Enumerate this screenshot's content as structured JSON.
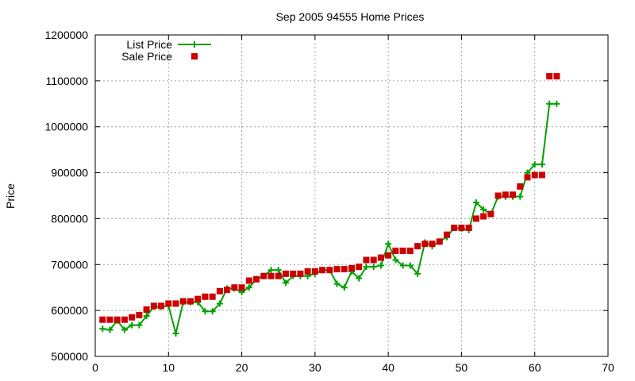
{
  "chart_data": {
    "type": "line",
    "title": "Sep 2005 94555 Home Prices",
    "xlabel": "",
    "ylabel": "Price",
    "xlim": [
      0,
      70
    ],
    "ylim": [
      500000,
      1200000
    ],
    "xticks": [
      0,
      10,
      20,
      30,
      40,
      50,
      60,
      70
    ],
    "yticks": [
      500000,
      600000,
      700000,
      800000,
      900000,
      1000000,
      1100000,
      1200000
    ],
    "grid": true,
    "legend_position": "top-left",
    "series": [
      {
        "name": "List Price",
        "style": "line-plus",
        "color": "#00a000",
        "x": [
          1,
          2,
          3,
          4,
          5,
          6,
          7,
          8,
          9,
          10,
          11,
          12,
          13,
          14,
          15,
          16,
          17,
          18,
          19,
          20,
          21,
          22,
          23,
          24,
          25,
          26,
          27,
          28,
          29,
          30,
          31,
          32,
          33,
          34,
          35,
          36,
          37,
          38,
          39,
          40,
          41,
          42,
          43,
          44,
          45,
          46,
          47,
          48,
          49,
          50,
          51,
          52,
          53,
          54,
          55,
          56,
          57,
          58,
          59,
          60,
          61,
          62,
          63
        ],
        "y": [
          560000,
          558000,
          578000,
          558000,
          568000,
          568000,
          588000,
          608000,
          608000,
          610000,
          550000,
          618000,
          618000,
          618000,
          598000,
          598000,
          615000,
          648000,
          648000,
          640000,
          650000,
          668000,
          675000,
          688000,
          688000,
          660000,
          675000,
          675000,
          675000,
          680000,
          688000,
          688000,
          658000,
          650000,
          685000,
          670000,
          695000,
          695000,
          698000,
          745000,
          710000,
          698000,
          698000,
          680000,
          748000,
          740000,
          750000,
          760000,
          780000,
          778000,
          775000,
          835000,
          820000,
          810000,
          848000,
          848000,
          848000,
          848000,
          900000,
          918000,
          918000,
          1050000,
          1050000
        ]
      },
      {
        "name": "Sale Price",
        "style": "square",
        "color": "#cc0000",
        "x": [
          1,
          2,
          3,
          4,
          5,
          6,
          7,
          8,
          9,
          10,
          11,
          12,
          13,
          14,
          15,
          16,
          17,
          18,
          19,
          20,
          21,
          22,
          23,
          24,
          25,
          26,
          27,
          28,
          29,
          30,
          31,
          32,
          33,
          34,
          35,
          36,
          37,
          38,
          39,
          40,
          41,
          42,
          43,
          44,
          45,
          46,
          47,
          48,
          49,
          50,
          51,
          52,
          53,
          54,
          55,
          56,
          57,
          58,
          59,
          60,
          61,
          62,
          63
        ],
        "y": [
          580000,
          580000,
          580000,
          580000,
          585000,
          590000,
          602000,
          610000,
          610000,
          615000,
          615000,
          620000,
          620000,
          625000,
          630000,
          630000,
          642000,
          645000,
          650000,
          650000,
          665000,
          668000,
          675000,
          675000,
          675000,
          680000,
          680000,
          680000,
          685000,
          685000,
          688000,
          688000,
          690000,
          690000,
          692000,
          695000,
          710000,
          710000,
          715000,
          720000,
          730000,
          730000,
          730000,
          740000,
          745000,
          745000,
          750000,
          765000,
          780000,
          780000,
          780000,
          800000,
          805000,
          810000,
          850000,
          852000,
          852000,
          870000,
          890000,
          895000,
          895000,
          1110000,
          1110000
        ]
      }
    ]
  }
}
